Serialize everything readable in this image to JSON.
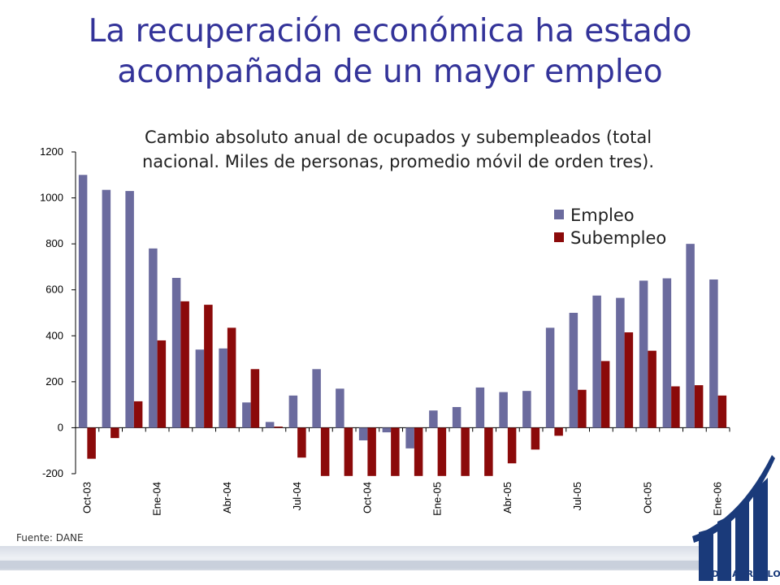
{
  "slide": {
    "title_line1": "La recuperación económica ha estado",
    "title_line2": "acompañada de un mayor empleo",
    "source": "Fuente: DANE",
    "logo_text": "FEDESARROLLO"
  },
  "colors": {
    "title": "#333399",
    "empleo": "#6B6B9E",
    "subempleo": "#8B0A0A",
    "logo": "#1a3a7a"
  },
  "chart_data": {
    "type": "bar",
    "subtitle_line1": "Cambio absoluto anual de ocupados y subempleados (total",
    "subtitle_line2": "nacional. Miles de personas, promedio móvil de orden tres).",
    "ylim": [
      -200,
      1200
    ],
    "yticks": [
      -200,
      0,
      200,
      400,
      600,
      800,
      1000,
      1200
    ],
    "ytick_labels": [
      "-200",
      "0",
      "200",
      "400",
      "600",
      "800",
      "1000",
      "1200"
    ],
    "xtick_labels": [
      "Oct-03",
      "Ene-04",
      "Abr-04",
      "Jul-04",
      "Oct-04",
      "Ene-05",
      "Abr-05",
      "Jul-05",
      "Oct-05",
      "Ene-06"
    ],
    "xtick_every": 3,
    "legend": [
      "Empleo",
      "Subempleo"
    ],
    "legend_position": "top-right",
    "series": [
      {
        "name": "Empleo",
        "values": [
          1100,
          1035,
          1030,
          780,
          652,
          340,
          345,
          110,
          25,
          140,
          255,
          170,
          -55,
          -20,
          -90,
          75,
          90,
          175,
          155,
          160,
          435,
          500,
          575,
          565,
          640,
          650,
          800,
          645
        ]
      },
      {
        "name": "Subempleo",
        "values": [
          -135,
          -45,
          115,
          380,
          550,
          535,
          435,
          255,
          5,
          -130,
          -210,
          -210,
          -210,
          -210,
          -210,
          -210,
          -210,
          -210,
          -155,
          -95,
          -35,
          165,
          290,
          415,
          335,
          180,
          185,
          140
        ]
      }
    ]
  }
}
